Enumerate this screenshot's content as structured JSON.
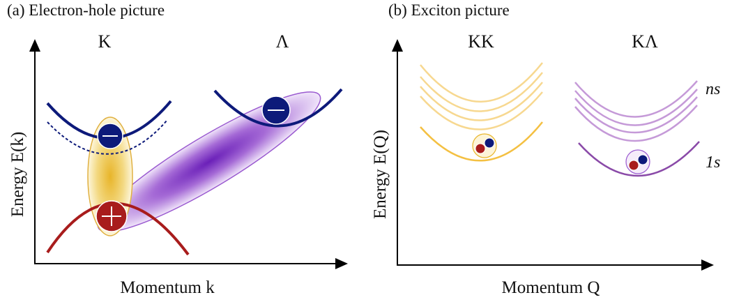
{
  "panels": [
    {
      "title": "(a) Electron-hole picture",
      "valley_labels": [
        "K",
        "Λ"
      ],
      "y_label": "Energy E(k)",
      "x_label": "Momentum k"
    },
    {
      "title": "(b) Exciton picture",
      "valley_labels": [
        "KK",
        "KΛ"
      ],
      "y_label": "Energy E(Q)",
      "x_label": "Momentum Q",
      "state_labels": [
        "ns",
        "1s"
      ]
    }
  ]
}
